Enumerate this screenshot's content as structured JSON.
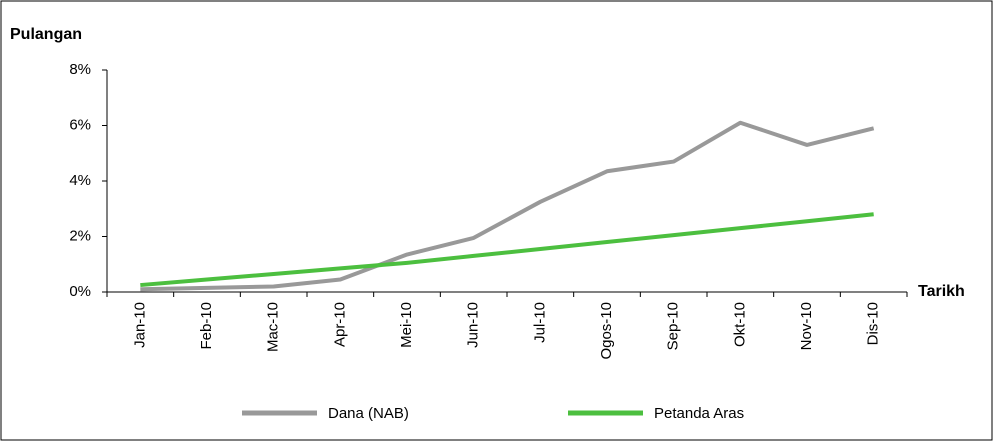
{
  "chart_data": {
    "type": "line",
    "y_label": "Pulangan",
    "x_label": "Tarikh",
    "categories": [
      "Jan-10",
      "Feb-10",
      "Mac-10",
      "Apr-10",
      "Mei-10",
      "Jun-10",
      "Jul-10",
      "Ogos-10",
      "Sep-10",
      "Okt-10",
      "Nov-10",
      "Dis-10"
    ],
    "series": [
      {
        "name": "Dana (NAB)",
        "color": "#999999",
        "values": [
          0.1,
          0.15,
          0.2,
          0.45,
          1.35,
          1.95,
          3.25,
          4.35,
          4.7,
          6.1,
          5.3,
          5.9
        ]
      },
      {
        "name": "Petanda Aras",
        "color": "#4cbf3f",
        "values": [
          0.25,
          0.45,
          0.65,
          0.85,
          1.05,
          1.3,
          1.55,
          1.8,
          2.05,
          2.3,
          2.55,
          2.8
        ]
      }
    ],
    "ylim": [
      0,
      8
    ],
    "yticks": [
      {
        "value": 0,
        "label": "0%"
      },
      {
        "value": 2,
        "label": "2%"
      },
      {
        "value": 4,
        "label": "4%"
      },
      {
        "value": 6,
        "label": "6%"
      },
      {
        "value": 8,
        "label": "8%"
      }
    ],
    "grid": false,
    "legend": "bottom"
  }
}
